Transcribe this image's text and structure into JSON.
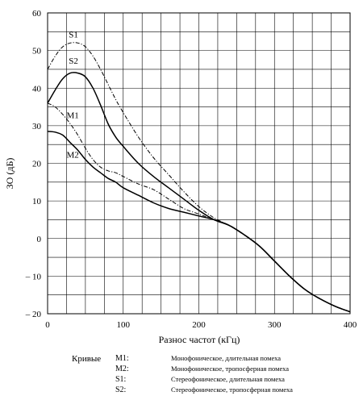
{
  "chart_data": {
    "type": "line",
    "xlabel": "Разнос частот (кГц)",
    "ylabel": "ЗО (дБ)",
    "xlim": [
      0,
      400
    ],
    "ylim": [
      -20,
      60
    ],
    "xticks": [
      "0",
      "100",
      "200",
      "300",
      "400"
    ],
    "yticks": [
      "60",
      "50",
      "40",
      "30",
      "20",
      "10",
      "0",
      "– 10",
      "– 20"
    ],
    "grid": true,
    "series": [
      {
        "name": "S1",
        "style": "dash-dot",
        "label_at": [
          28,
          53.5
        ],
        "x": [
          0,
          10,
          20,
          30,
          40,
          50,
          60,
          70,
          80,
          90,
          100,
          120,
          140,
          160,
          180,
          200,
          220,
          240,
          260,
          280,
          300,
          320,
          340,
          360,
          380,
          400
        ],
        "y": [
          45,
          48.5,
          51,
          52,
          52,
          51,
          48.5,
          45,
          41,
          37,
          33.5,
          27,
          21.5,
          17,
          12.5,
          8.5,
          5.5,
          3.5,
          1,
          -2,
          -6,
          -10,
          -13.5,
          -16,
          -18,
          -19.5
        ]
      },
      {
        "name": "S2",
        "style": "solid",
        "label_at": [
          28,
          46.5
        ],
        "x": [
          0,
          10,
          20,
          30,
          40,
          50,
          60,
          70,
          80,
          90,
          100,
          120,
          140,
          160,
          180,
          200,
          220,
          240,
          260,
          280,
          300,
          320,
          340,
          360,
          380,
          400
        ],
        "y": [
          36,
          39.5,
          42.5,
          44,
          44,
          43,
          40,
          35.5,
          30.5,
          27,
          24.5,
          20,
          16.5,
          13.5,
          10.5,
          7.5,
          5,
          3.5,
          1,
          -2,
          -6,
          -10,
          -13.5,
          -16,
          -18,
          -19.5
        ]
      },
      {
        "name": "M1",
        "style": "dash-dot",
        "label_at": [
          25,
          32
        ],
        "x": [
          0,
          10,
          20,
          30,
          40,
          50,
          60,
          70,
          80,
          90,
          100,
          120,
          140,
          160,
          180,
          200,
          220,
          240,
          260,
          280,
          300,
          320,
          340,
          360,
          380,
          400
        ],
        "y": [
          36,
          35,
          33,
          30.5,
          27.5,
          24,
          21,
          19,
          18,
          17.5,
          16.5,
          14.5,
          13,
          10.5,
          8,
          6.5,
          5,
          3.5,
          1,
          -2,
          -6,
          -10,
          -13.5,
          -16,
          -18,
          -19.5
        ]
      },
      {
        "name": "M2",
        "style": "solid",
        "label_at": [
          25,
          21.5
        ],
        "x": [
          0,
          10,
          20,
          30,
          40,
          50,
          60,
          70,
          80,
          90,
          100,
          120,
          140,
          160,
          180,
          200,
          220,
          240,
          260,
          280,
          300,
          320,
          340,
          360,
          380,
          400
        ],
        "y": [
          28.5,
          28.3,
          27.5,
          25.5,
          23.5,
          21,
          19,
          17.5,
          16,
          15,
          13.5,
          11.5,
          9.5,
          8,
          7,
          6,
          5,
          3.5,
          1,
          -2,
          -6,
          -10,
          -13.5,
          -16,
          -18,
          -19.5
        ]
      }
    ],
    "legend": {
      "title": "Кривые",
      "entries": [
        {
          "code": "M1:",
          "text": "Монофоническое, длительная помеха"
        },
        {
          "code": "M2:",
          "text": "Монофоническое, тропосферная помеха"
        },
        {
          "code": "S1:",
          "text": "Стереофоническое, длительная помеха"
        },
        {
          "code": "S2:",
          "text": "Стереофоническое, тропосферная помеха"
        }
      ]
    }
  }
}
